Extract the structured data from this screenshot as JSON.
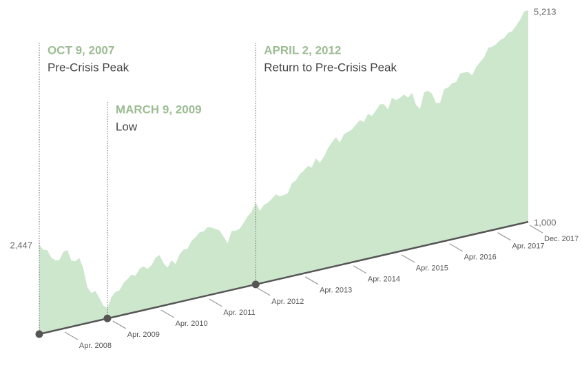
{
  "chart_data": {
    "type": "area",
    "x": [
      "2007-10",
      "2007-11",
      "2007-12",
      "2008-01",
      "2008-02",
      "2008-03",
      "2008-04",
      "2008-05",
      "2008-06",
      "2008-07",
      "2008-08",
      "2008-09",
      "2008-10",
      "2008-11",
      "2008-12",
      "2009-01",
      "2009-02",
      "2009-03",
      "2009-04",
      "2009-05",
      "2009-06",
      "2009-07",
      "2009-08",
      "2009-09",
      "2009-10",
      "2009-11",
      "2009-12",
      "2010-01",
      "2010-02",
      "2010-03",
      "2010-04",
      "2010-05",
      "2010-06",
      "2010-07",
      "2010-08",
      "2010-09",
      "2010-10",
      "2010-11",
      "2010-12",
      "2011-01",
      "2011-02",
      "2011-03",
      "2011-04",
      "2011-05",
      "2011-06",
      "2011-07",
      "2011-08",
      "2011-09",
      "2011-10",
      "2011-11",
      "2011-12",
      "2012-01",
      "2012-02",
      "2012-03",
      "2012-04",
      "2012-05",
      "2012-06",
      "2012-07",
      "2012-08",
      "2012-09",
      "2012-10",
      "2012-11",
      "2012-12",
      "2013-01",
      "2013-02",
      "2013-03",
      "2013-04",
      "2013-05",
      "2013-06",
      "2013-07",
      "2013-08",
      "2013-09",
      "2013-10",
      "2013-11",
      "2013-12",
      "2014-01",
      "2014-02",
      "2014-03",
      "2014-04",
      "2014-05",
      "2014-06",
      "2014-07",
      "2014-08",
      "2014-09",
      "2014-10",
      "2014-11",
      "2014-12",
      "2015-01",
      "2015-02",
      "2015-03",
      "2015-04",
      "2015-05",
      "2015-06",
      "2015-07",
      "2015-08",
      "2015-09",
      "2015-10",
      "2015-11",
      "2015-12",
      "2016-01",
      "2016-02",
      "2016-03",
      "2016-04",
      "2016-05",
      "2016-06",
      "2016-07",
      "2016-08",
      "2016-09",
      "2016-10",
      "2016-11",
      "2016-12",
      "2017-01",
      "2017-02",
      "2017-03",
      "2017-04",
      "2017-05",
      "2017-06",
      "2017-07",
      "2017-08",
      "2017-09",
      "2017-10",
      "2017-11",
      "2017-12"
    ],
    "series": [
      {
        "color": "#cde7cd",
        "values": [
          2447,
          2350,
          2330,
          2200,
          2140,
          2130,
          2250,
          2270,
          2080,
          2060,
          2100,
          1910,
          1590,
          1480,
          1500,
          1370,
          1230,
          1170,
          1340,
          1410,
          1420,
          1530,
          1580,
          1640,
          1610,
          1710,
          1740,
          1680,
          1730,
          1840,
          1870,
          1720,
          1630,
          1740,
          1660,
          1810,
          1880,
          1880,
          2000,
          2050,
          2120,
          2120,
          2180,
          2160,
          2120,
          2080,
          1960,
          1830,
          2030,
          2020,
          2040,
          2130,
          2230,
          2300,
          2447,
          2280,
          2370,
          2400,
          2450,
          2520,
          2470,
          2480,
          2500,
          2660,
          2700,
          2800,
          2850,
          2920,
          2880,
          3030,
          2940,
          3030,
          3170,
          3270,
          3350,
          3240,
          3380,
          3410,
          3440,
          3520,
          3590,
          3540,
          3680,
          3630,
          3720,
          3820,
          3810,
          3700,
          3910,
          3850,
          3880,
          3930,
          3860,
          3940,
          3700,
          3610,
          3910,
          3930,
          3860,
          3670,
          3660,
          3910,
          3930,
          4000,
          4010,
          4160,
          4170,
          4170,
          4090,
          4240,
          4330,
          4410,
          4580,
          4590,
          4630,
          4700,
          4730,
          4820,
          4840,
          4940,
          5050,
          5200,
          5213
        ],
        "value_labels": [
          "2,447",
          null,
          null,
          null,
          null,
          null,
          null,
          null,
          null,
          null,
          null,
          null,
          null,
          null,
          null,
          null,
          null,
          null,
          null,
          null,
          null,
          null,
          null,
          null,
          null,
          null,
          null,
          null,
          null,
          null,
          null,
          null,
          null,
          null,
          null,
          null,
          null,
          null,
          null,
          null,
          null,
          null,
          null,
          null,
          null,
          null,
          null,
          null,
          null,
          null,
          null,
          null,
          null,
          null,
          null,
          null,
          null,
          null,
          null,
          null,
          null,
          null,
          null,
          null,
          null,
          null,
          null,
          null,
          null,
          null,
          null,
          null,
          null,
          null,
          null,
          null,
          null,
          null,
          null,
          null,
          null,
          null,
          null,
          null,
          null,
          null,
          null,
          null,
          null,
          null,
          null,
          null,
          null,
          null,
          null,
          null,
          null,
          null,
          null,
          null,
          null,
          null,
          null,
          null,
          null,
          null,
          null,
          null,
          null,
          null,
          null,
          null,
          null,
          null,
          null,
          null,
          null,
          null,
          null,
          null,
          null,
          null,
          "5,213"
        ]
      }
    ],
    "ylim": [
      1000,
      5213
    ],
    "yticks": [
      {
        "value": 1000,
        "label": "1,000"
      }
    ],
    "xticks": [
      {
        "value": "2008-04",
        "label": "Apr. 2008"
      },
      {
        "value": "2009-04",
        "label": "Apr. 2009"
      },
      {
        "value": "2010-04",
        "label": "Apr. 2010"
      },
      {
        "value": "2011-04",
        "label": "Apr. 2011"
      },
      {
        "value": "2012-04",
        "label": "Apr. 2012"
      },
      {
        "value": "2013-04",
        "label": "Apr. 2013"
      },
      {
        "value": "2014-04",
        "label": "Apr. 2014"
      },
      {
        "value": "2015-04",
        "label": "Apr. 2015"
      },
      {
        "value": "2016-04",
        "label": "Apr. 2016"
      },
      {
        "value": "2017-04",
        "label": "Apr. 2017"
      },
      {
        "value": "2017-12",
        "label": "Dec. 2017"
      }
    ],
    "annotations": [
      {
        "x": "2007-10",
        "title": "OCT 9, 2007",
        "text": "Pre-Crisis Peak"
      },
      {
        "x": "2009-03",
        "title": "MARCH 9, 2009",
        "text": "Low"
      },
      {
        "x": "2012-04",
        "title": "APRIL 2, 2012",
        "text": "Return to Pre-Crisis Peak"
      }
    ]
  }
}
